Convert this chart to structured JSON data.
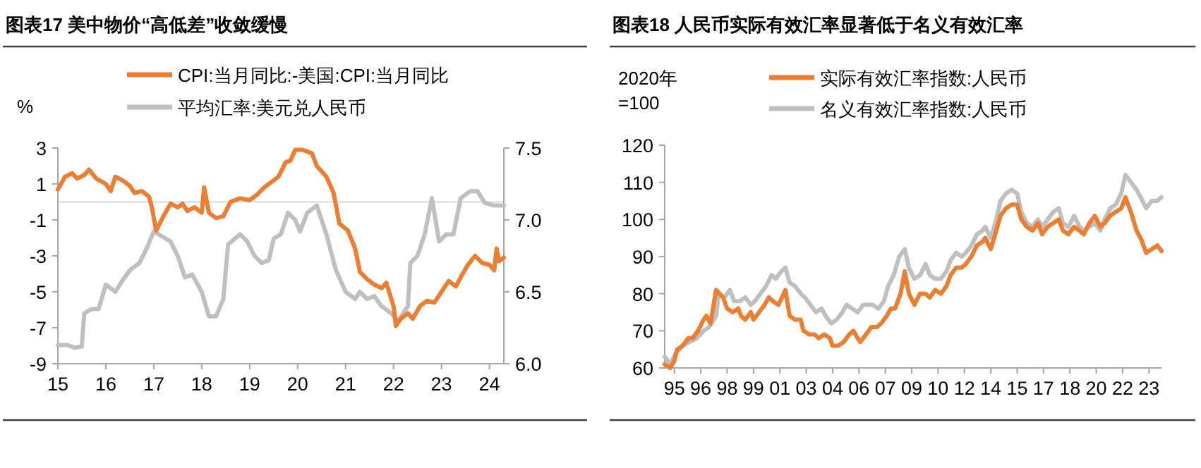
{
  "chart_data": [
    {
      "type": "line",
      "title": "图表17   美中物价“高低差”收敛缓慢",
      "ylabel": "%",
      "legend": "top",
      "xlim": [
        2015,
        2024.3
      ],
      "xticks": [
        {
          "value": 2015,
          "label": "15"
        },
        {
          "value": 2016,
          "label": "16"
        },
        {
          "value": 2017,
          "label": "17"
        },
        {
          "value": 2018,
          "label": "18"
        },
        {
          "value": 2019,
          "label": "19"
        },
        {
          "value": 2020,
          "label": "20"
        },
        {
          "value": 2021,
          "label": "21"
        },
        {
          "value": 2022,
          "label": "22"
        },
        {
          "value": 2023,
          "label": "23"
        },
        {
          "value": 2024,
          "label": "24"
        }
      ],
      "ylim": [
        -9,
        3
      ],
      "yticks": [
        3,
        1,
        -1,
        -3,
        -5,
        -7,
        -9
      ],
      "y2lim": [
        6.0,
        7.5
      ],
      "y2ticks": [
        {
          "value": 6.0,
          "label": "6.0"
        },
        6.5,
        {
          "value": 7.0,
          "label": "7.0"
        },
        7.5
      ],
      "ref_lines": [
        {
          "axis": "y",
          "value": 0,
          "color": "#d9d9d9"
        }
      ],
      "series": [
        {
          "name": "CPI:当月同比:-美国:CPI:当月同比",
          "color": "#ed7d31",
          "x": [
            2015.0,
            2015.15,
            2015.3,
            2015.4,
            2015.55,
            2015.65,
            2015.8,
            2016.0,
            2016.1,
            2016.2,
            2016.35,
            2016.5,
            2016.6,
            2016.75,
            2016.9,
            2016.96,
            2017.05,
            2017.2,
            2017.35,
            2017.5,
            2017.6,
            2017.7,
            2017.85,
            2018.0,
            2018.05,
            2018.15,
            2018.3,
            2018.45,
            2018.6,
            2018.8,
            2019.0,
            2019.15,
            2019.3,
            2019.45,
            2019.6,
            2019.75,
            2019.85,
            2019.95,
            2020.1,
            2020.3,
            2020.4,
            2020.6,
            2020.75,
            2020.87,
            2021.05,
            2021.2,
            2021.3,
            2021.45,
            2021.6,
            2021.75,
            2021.85,
            2022.0,
            2022.05,
            2022.15,
            2022.3,
            2022.4,
            2022.55,
            2022.7,
            2022.85,
            2023.0,
            2023.15,
            2023.3,
            2023.4,
            2023.55,
            2023.7,
            2023.85,
            2024.0,
            2024.1,
            2024.15,
            2024.2,
            2024.3
          ],
          "values": [
            0.7,
            1.4,
            1.6,
            1.3,
            1.5,
            1.8,
            1.3,
            1.0,
            0.6,
            1.4,
            1.2,
            0.9,
            0.5,
            0.6,
            0.3,
            -0.3,
            -1.6,
            -0.8,
            -0.1,
            -0.3,
            -0.1,
            -0.5,
            -0.3,
            -0.6,
            0.8,
            -0.6,
            -0.9,
            -0.8,
            0.0,
            0.2,
            0.1,
            0.4,
            0.8,
            1.1,
            1.4,
            2.2,
            2.3,
            2.9,
            2.9,
            2.7,
            2.0,
            1.4,
            0.5,
            -1.2,
            -1.6,
            -2.6,
            -3.9,
            -4.3,
            -4.6,
            -4.8,
            -4.5,
            -5.8,
            -6.9,
            -6.5,
            -6.2,
            -6.5,
            -5.8,
            -5.5,
            -5.6,
            -5.0,
            -4.4,
            -4.7,
            -4.2,
            -3.5,
            -3.0,
            -3.4,
            -3.5,
            -3.8,
            -2.6,
            -3.3,
            -3.1
          ]
        },
        {
          "name": "平均汇率:美元兑人民币",
          "color": "#bfbfbf",
          "axis": "y2",
          "x": [
            2015.0,
            2015.2,
            2015.35,
            2015.5,
            2015.55,
            2015.7,
            2015.85,
            2016.0,
            2016.2,
            2016.35,
            2016.5,
            2016.7,
            2016.85,
            2017.0,
            2017.2,
            2017.35,
            2017.5,
            2017.65,
            2017.8,
            2018.0,
            2018.15,
            2018.3,
            2018.45,
            2018.55,
            2018.8,
            2018.95,
            2019.1,
            2019.25,
            2019.4,
            2019.5,
            2019.65,
            2019.8,
            2019.95,
            2020.05,
            2020.2,
            2020.4,
            2020.6,
            2020.8,
            2021.0,
            2021.2,
            2021.3,
            2021.45,
            2021.6,
            2021.75,
            2021.95,
            2022.1,
            2022.3,
            2022.35,
            2022.5,
            2022.65,
            2022.8,
            2022.95,
            2023.1,
            2023.25,
            2023.4,
            2023.6,
            2023.75,
            2023.9,
            2024.1,
            2024.3
          ],
          "values": [
            6.13,
            6.13,
            6.11,
            6.12,
            6.35,
            6.38,
            6.38,
            6.55,
            6.5,
            6.58,
            6.65,
            6.7,
            6.8,
            6.92,
            6.88,
            6.85,
            6.75,
            6.6,
            6.62,
            6.5,
            6.33,
            6.33,
            6.45,
            6.83,
            6.9,
            6.85,
            6.75,
            6.7,
            6.72,
            6.87,
            6.9,
            7.05,
            7.0,
            6.92,
            7.05,
            7.1,
            6.9,
            6.65,
            6.5,
            6.45,
            6.5,
            6.45,
            6.47,
            6.4,
            6.35,
            6.3,
            6.4,
            6.7,
            6.75,
            6.9,
            7.15,
            6.85,
            6.9,
            6.9,
            7.15,
            7.2,
            7.2,
            7.12,
            7.1,
            7.1
          ]
        }
      ]
    },
    {
      "type": "line",
      "title": "图表18   人民币实际有效汇率显著低于名义有效汇率",
      "ylabel": "2020年\n=100",
      "legend": "top",
      "xlim": [
        "1994-07",
        "2024-05"
      ],
      "xticks": [
        {
          "value": "1995-02",
          "label": "95"
        },
        {
          "value": "1996-09",
          "label": "96"
        },
        {
          "value": "1998-04",
          "label": "98"
        },
        {
          "value": "1999-11",
          "label": "99"
        },
        {
          "value": "2001-06",
          "label": "01"
        },
        {
          "value": "2003-01",
          "label": "03"
        },
        {
          "value": "2004-08",
          "label": "04"
        },
        {
          "value": "2006-03",
          "label": "06"
        },
        {
          "value": "2007-10",
          "label": "07"
        },
        {
          "value": "2009-05",
          "label": "09"
        },
        {
          "value": "2010-12",
          "label": "10"
        },
        {
          "value": "2012-07",
          "label": "12"
        },
        {
          "value": "2014-02",
          "label": "14"
        },
        {
          "value": "2015-09",
          "label": "15"
        },
        {
          "value": "2017-04",
          "label": "17"
        },
        {
          "value": "2018-11",
          "label": "18"
        },
        {
          "value": "2020-06",
          "label": "20"
        },
        {
          "value": "2022-01",
          "label": "22"
        },
        {
          "value": "2023-08",
          "label": "23"
        }
      ],
      "ylim": [
        60,
        120
      ],
      "yticks": [
        120,
        110,
        100,
        90,
        80,
        70,
        60
      ],
      "series": [
        {
          "name": "实际有效汇率指数:人民币",
          "color": "#ed7d31",
          "x": [
            "1994-07",
            "1994-11",
            "1995-02",
            "1995-04",
            "1995-08",
            "1995-12",
            "1996-03",
            "1996-07",
            "1996-11",
            "1997-01",
            "1997-04",
            "1997-08",
            "1998-01",
            "1998-04",
            "1998-08",
            "1998-12",
            "1999-02",
            "1999-05",
            "1999-09",
            "1999-11",
            "2000-03",
            "2000-07",
            "2000-10",
            "2001-01",
            "2001-05",
            "2001-10",
            "2002-01",
            "2002-05",
            "2002-09",
            "2002-11",
            "2003-03",
            "2003-07",
            "2003-10",
            "2004-02",
            "2004-06",
            "2004-08",
            "2004-12",
            "2005-04",
            "2005-08",
            "2005-11",
            "2006-02",
            "2006-04",
            "2006-08",
            "2006-12",
            "2007-04",
            "2007-07",
            "2007-11",
            "2008-02",
            "2008-05",
            "2008-09",
            "2008-12",
            "2009-03",
            "2009-07",
            "2009-11",
            "2010-03",
            "2010-06",
            "2010-10",
            "2011-02",
            "2011-06",
            "2011-09",
            "2012-01",
            "2012-05",
            "2012-08",
            "2012-12",
            "2013-04",
            "2013-08",
            "2013-10",
            "2014-02",
            "2014-06",
            "2014-09",
            "2015-01",
            "2015-05",
            "2015-09",
            "2015-12",
            "2016-04",
            "2016-08",
            "2016-12",
            "2017-03",
            "2017-07",
            "2017-11",
            "2018-03",
            "2018-06",
            "2018-10",
            "2019-02",
            "2019-06",
            "2019-09",
            "2020-01",
            "2020-05",
            "2020-09",
            "2020-12",
            "2021-04",
            "2021-08",
            "2021-12",
            "2022-03",
            "2022-07",
            "2022-11",
            "2023-02",
            "2023-06",
            "2023-10",
            "2024-02",
            "2024-05"
          ],
          "values": [
            61,
            60,
            62,
            65,
            66,
            68,
            68,
            70,
            73,
            74,
            72,
            81,
            79,
            76,
            75,
            76,
            74,
            73,
            75,
            73,
            75,
            77,
            79,
            78,
            77,
            81,
            74,
            73,
            73,
            70,
            69,
            69,
            68,
            69,
            68,
            66,
            66,
            67,
            69,
            70,
            68,
            67,
            69,
            71,
            71,
            72,
            74,
            76,
            76,
            80,
            86,
            80,
            77,
            80,
            80,
            79,
            81,
            80,
            82,
            85,
            87,
            87,
            88,
            90,
            93,
            94,
            95,
            92,
            97,
            101,
            103,
            104,
            104,
            100,
            98,
            97,
            99,
            96,
            98,
            99,
            100,
            97,
            96,
            98,
            97,
            96,
            99,
            101,
            98,
            99,
            101,
            102,
            103,
            106,
            102,
            97,
            95,
            91,
            92,
            93,
            91.5
          ]
        },
        {
          "name": "名义有效汇率指数:人民币",
          "color": "#bfbfbf",
          "x": [
            "1994-07",
            "1994-11",
            "1995-03",
            "1995-08",
            "1996-01",
            "1996-06",
            "1996-11",
            "1997-03",
            "1997-08",
            "1997-10",
            "1998-02",
            "1998-06",
            "1998-09",
            "1999-01",
            "1999-05",
            "1999-09",
            "1999-12",
            "2000-04",
            "2000-08",
            "2000-12",
            "2001-03",
            "2001-07",
            "2001-10",
            "2002-01",
            "2002-05",
            "2002-09",
            "2002-12",
            "2003-04",
            "2003-08",
            "2003-12",
            "2004-03",
            "2004-07",
            "2004-11",
            "2005-03",
            "2005-06",
            "2005-10",
            "2006-02",
            "2006-06",
            "2006-09",
            "2007-01",
            "2007-05",
            "2007-09",
            "2007-12",
            "2008-04",
            "2008-08",
            "2008-12",
            "2009-03",
            "2009-07",
            "2009-11",
            "2010-03",
            "2010-06",
            "2010-10",
            "2011-02",
            "2011-06",
            "2011-09",
            "2012-01",
            "2012-05",
            "2012-08",
            "2012-12",
            "2013-04",
            "2013-08",
            "2013-10",
            "2014-02",
            "2014-06",
            "2014-09",
            "2015-01",
            "2015-05",
            "2015-09",
            "2015-12",
            "2016-04",
            "2016-08",
            "2016-12",
            "2017-03",
            "2017-07",
            "2017-11",
            "2018-03",
            "2018-06",
            "2018-10",
            "2019-02",
            "2019-06",
            "2019-09",
            "2020-01",
            "2020-05",
            "2020-09",
            "2020-12",
            "2021-04",
            "2021-08",
            "2021-12",
            "2022-03",
            "2022-07",
            "2022-11",
            "2023-02",
            "2023-06",
            "2023-10",
            "2024-02",
            "2024-05"
          ],
          "values": [
            63,
            61,
            64,
            66,
            67,
            68,
            70,
            71,
            74,
            80,
            79,
            81,
            78,
            78,
            79,
            77,
            78,
            80,
            82,
            85,
            84,
            86,
            87,
            83,
            82,
            80,
            79,
            77,
            75,
            76,
            74,
            72,
            73,
            75,
            77,
            76,
            75,
            77,
            77,
            77,
            76,
            78,
            82,
            85,
            90,
            92,
            87,
            84,
            85,
            88,
            85,
            84,
            84,
            86,
            89,
            91,
            90,
            91,
            93,
            96,
            97,
            98,
            95,
            100,
            105,
            107,
            108,
            107,
            102,
            99,
            98,
            100,
            98,
            100,
            102,
            103,
            99,
            98,
            101,
            98,
            97,
            98,
            99,
            97,
            100,
            103,
            104,
            107,
            112,
            110,
            108,
            106,
            103,
            105,
            105,
            106
          ]
        }
      ]
    }
  ]
}
